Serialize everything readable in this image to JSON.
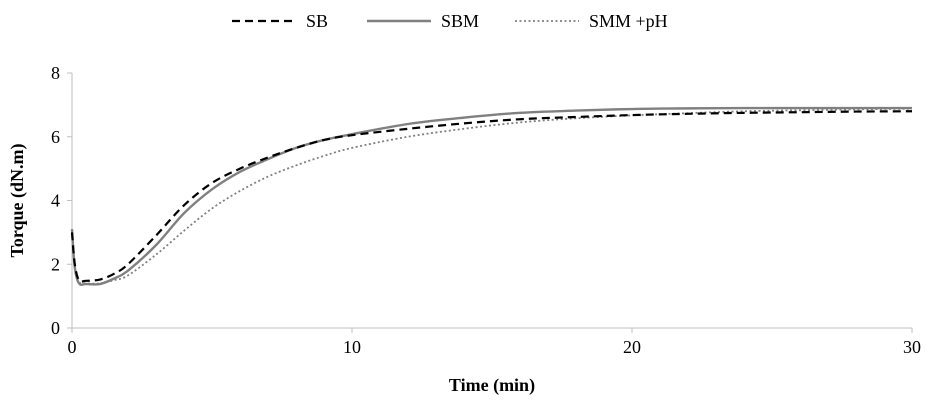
{
  "chart_data": {
    "type": "line",
    "title": "",
    "xlabel": "Time (min)",
    "ylabel": "Torque (dN.m)",
    "xlim": [
      0,
      30
    ],
    "ylim": [
      0,
      8
    ],
    "x_ticks": [
      0,
      10,
      20,
      30
    ],
    "y_ticks": [
      0,
      2,
      4,
      6,
      8
    ],
    "grid": false,
    "legend_position": "top",
    "series": [
      {
        "name": "SB",
        "color": "#000000",
        "dash": "dashed",
        "x": [
          0,
          0.1,
          0.25,
          0.5,
          1,
          1.5,
          2,
          3,
          4,
          5,
          6,
          7,
          8,
          9,
          10,
          12,
          14,
          16,
          18,
          20,
          22,
          24,
          26,
          28,
          30
        ],
        "y": [
          3.0,
          2.0,
          1.5,
          1.48,
          1.52,
          1.7,
          2.0,
          2.9,
          3.85,
          4.55,
          5.0,
          5.35,
          5.65,
          5.9,
          6.05,
          6.25,
          6.42,
          6.55,
          6.62,
          6.68,
          6.72,
          6.75,
          6.77,
          6.79,
          6.8
        ]
      },
      {
        "name": "SBM",
        "color": "#808080",
        "dash": "solid",
        "x": [
          0,
          0.1,
          0.25,
          0.5,
          1,
          1.5,
          2,
          3,
          4,
          5,
          6,
          7,
          8,
          9,
          10,
          12,
          14,
          16,
          18,
          20,
          22,
          24,
          26,
          28,
          30
        ],
        "y": [
          3.1,
          1.9,
          1.4,
          1.38,
          1.38,
          1.55,
          1.8,
          2.6,
          3.6,
          4.35,
          4.9,
          5.3,
          5.65,
          5.9,
          6.08,
          6.4,
          6.6,
          6.75,
          6.82,
          6.87,
          6.89,
          6.9,
          6.9,
          6.9,
          6.9
        ]
      },
      {
        "name": "SMM +pH",
        "color": "#808080",
        "dash": "dotted",
        "x": [
          0,
          0.1,
          0.25,
          0.5,
          1,
          1.5,
          2,
          3,
          4,
          5,
          6,
          7,
          8,
          9,
          10,
          12,
          14,
          16,
          18,
          20,
          22,
          24,
          26,
          28,
          30
        ],
        "y": [
          3.1,
          1.9,
          1.45,
          1.4,
          1.4,
          1.5,
          1.65,
          2.3,
          3.05,
          3.75,
          4.3,
          4.75,
          5.1,
          5.4,
          5.65,
          6.0,
          6.25,
          6.45,
          6.58,
          6.67,
          6.74,
          6.8,
          6.83,
          6.86,
          6.88
        ]
      }
    ]
  }
}
